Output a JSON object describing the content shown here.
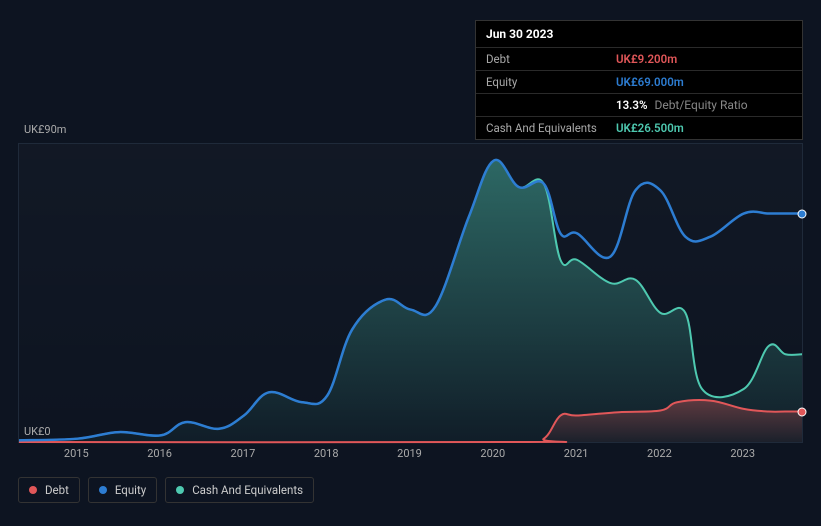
{
  "tooltip": {
    "date": "Jun 30 2023",
    "debt_label": "Debt",
    "debt_value": "UK£9.200m",
    "equity_label": "Equity",
    "equity_value": "UK£69.000m",
    "ratio_value": "13.3%",
    "ratio_suffix": "Debt/Equity Ratio",
    "cash_label": "Cash And Equivalents",
    "cash_value": "UK£26.500m"
  },
  "y_axis": {
    "top_label": "UK£90m",
    "bottom_label": "UK£0"
  },
  "x_ticks": [
    "2015",
    "2016",
    "2017",
    "2018",
    "2019",
    "2020",
    "2021",
    "2022",
    "2023"
  ],
  "legend": {
    "debt": "Debt",
    "equity": "Equity",
    "cash": "Cash And Equivalents"
  },
  "colors": {
    "debt": "#e15759",
    "equity": "#2d7dd2",
    "cash": "#4ec9b0",
    "cash_fill": "rgba(72,160,150,0.35)",
    "background": "#0d1421",
    "border": "#1f2a3a"
  },
  "chart": {
    "type": "area-line",
    "y_domain": [
      0,
      90
    ],
    "x_domain": [
      2014.3,
      2023.7
    ],
    "series": {
      "cash": [
        [
          2014.3,
          0.5
        ],
        [
          2015,
          1
        ],
        [
          2015.5,
          3
        ],
        [
          2016,
          2
        ],
        [
          2016.3,
          6
        ],
        [
          2016.7,
          4
        ],
        [
          2017,
          8
        ],
        [
          2017.3,
          15
        ],
        [
          2017.7,
          12
        ],
        [
          2018,
          14
        ],
        [
          2018.3,
          34
        ],
        [
          2018.7,
          43
        ],
        [
          2019,
          40
        ],
        [
          2019.3,
          41
        ],
        [
          2019.7,
          68
        ],
        [
          2020,
          85
        ],
        [
          2020.3,
          77
        ],
        [
          2020.6,
          78
        ],
        [
          2020.8,
          55
        ],
        [
          2021,
          55
        ],
        [
          2021.4,
          48
        ],
        [
          2021.7,
          49
        ],
        [
          2022,
          39
        ],
        [
          2022.3,
          39
        ],
        [
          2022.5,
          16
        ],
        [
          2023,
          16
        ],
        [
          2023.3,
          29
        ],
        [
          2023.5,
          26.5
        ],
        [
          2023.7,
          26.5
        ]
      ],
      "equity": [
        [
          2014.3,
          0.5
        ],
        [
          2015,
          1
        ],
        [
          2015.5,
          3
        ],
        [
          2016,
          2
        ],
        [
          2016.3,
          6
        ],
        [
          2016.7,
          4
        ],
        [
          2017,
          8
        ],
        [
          2017.3,
          15
        ],
        [
          2017.7,
          12
        ],
        [
          2018,
          14
        ],
        [
          2018.3,
          34
        ],
        [
          2018.7,
          43
        ],
        [
          2019,
          40
        ],
        [
          2019.3,
          41
        ],
        [
          2019.7,
          68
        ],
        [
          2020,
          85
        ],
        [
          2020.3,
          77
        ],
        [
          2020.6,
          78
        ],
        [
          2020.8,
          63
        ],
        [
          2021,
          63
        ],
        [
          2021.4,
          56
        ],
        [
          2021.7,
          76
        ],
        [
          2022,
          76
        ],
        [
          2022.3,
          62
        ],
        [
          2022.6,
          62
        ],
        [
          2023,
          69
        ],
        [
          2023.3,
          69
        ],
        [
          2023.5,
          69
        ],
        [
          2023.7,
          69
        ]
      ],
      "debt": [
        [
          2014.3,
          0
        ],
        [
          2020.3,
          0
        ],
        [
          2020.6,
          1
        ],
        [
          2020.8,
          8
        ],
        [
          2021,
          8
        ],
        [
          2021.5,
          9
        ],
        [
          2022,
          9.5
        ],
        [
          2022.2,
          12
        ],
        [
          2022.6,
          12.5
        ],
        [
          2023,
          10
        ],
        [
          2023.3,
          9.2
        ],
        [
          2023.5,
          9.2
        ],
        [
          2023.7,
          9.2
        ]
      ]
    },
    "markers": {
      "x": 2023.7,
      "equity_y": 69,
      "debt_y": 9.2
    }
  }
}
